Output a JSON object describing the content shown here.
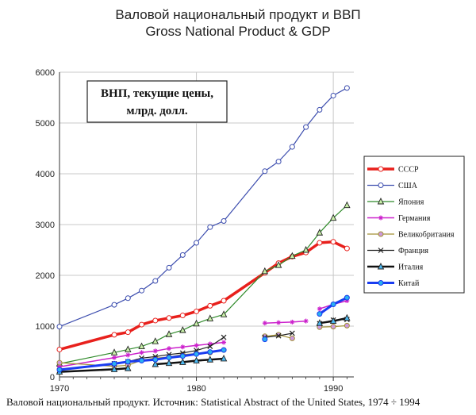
{
  "chart_data": {
    "type": "line",
    "title": "Валовой национальный продукт и ВВП",
    "subtitle": "Gross National Product & GDP",
    "annotation": [
      "ВНП, текущие цены,",
      "млрд. долл."
    ],
    "source": "Валовой национальный продукт. Источник: Statistical Abstract of the United States, 1974 ÷ 1994",
    "xlim": [
      1970,
      1991.5
    ],
    "ylim": [
      0,
      6000
    ],
    "x_ticks": [
      1970,
      1980,
      1990
    ],
    "y_ticks": [
      0,
      1000,
      2000,
      3000,
      4000,
      5000,
      6000
    ],
    "grid": true,
    "legend_position": "right",
    "series": [
      {
        "name": "СССР",
        "color": "#e8201c",
        "width": 3.5,
        "marker": "circle",
        "marker_fill": "#ffffff",
        "segments": [
          [
            [
              1970,
              540
            ],
            [
              1974,
              830
            ],
            [
              1975,
              880
            ],
            [
              1976,
              1030
            ],
            [
              1977,
              1110
            ],
            [
              1978,
              1160
            ],
            [
              1979,
              1210
            ],
            [
              1980,
              1290
            ],
            [
              1981,
              1400
            ],
            [
              1982,
              1500
            ],
            [
              1985,
              2050
            ],
            [
              1986,
              2240
            ],
            [
              1987,
              2370
            ],
            [
              1988,
              2450
            ],
            [
              1989,
              2640
            ],
            [
              1990,
              2660
            ],
            [
              1991,
              2530
            ]
          ]
        ]
      },
      {
        "name": "США",
        "color": "#3c4dae",
        "width": 1.2,
        "marker": "circle",
        "marker_fill": "#ffffff",
        "segments": [
          [
            [
              1970,
              990
            ],
            [
              1974,
              1420
            ],
            [
              1975,
              1550
            ],
            [
              1976,
              1700
            ],
            [
              1977,
              1890
            ],
            [
              1978,
              2150
            ],
            [
              1979,
              2400
            ],
            [
              1980,
              2640
            ],
            [
              1981,
              2950
            ],
            [
              1982,
              3070
            ],
            [
              1985,
              4050
            ],
            [
              1986,
              4240
            ],
            [
              1987,
              4530
            ],
            [
              1988,
              4920
            ],
            [
              1989,
              5260
            ],
            [
              1990,
              5540
            ],
            [
              1991,
              5690
            ]
          ]
        ]
      },
      {
        "name": "Япония",
        "color": "#2f8a2a",
        "width": 1.2,
        "marker": "triangle",
        "marker_fill": "#c8f0a8",
        "segments": [
          [
            [
              1970,
              260
            ],
            [
              1974,
              480
            ],
            [
              1975,
              540
            ],
            [
              1976,
              600
            ],
            [
              1977,
              700
            ],
            [
              1978,
              840
            ],
            [
              1979,
              920
            ],
            [
              1980,
              1050
            ],
            [
              1981,
              1150
            ],
            [
              1982,
              1230
            ],
            [
              1985,
              2080
            ],
            [
              1986,
              2200
            ],
            [
              1987,
              2380
            ],
            [
              1988,
              2500
            ],
            [
              1989,
              2840
            ],
            [
              1990,
              3130
            ],
            [
              1991,
              3380
            ]
          ]
        ]
      },
      {
        "name": "Германия",
        "color": "#cc22cc",
        "width": 1.5,
        "marker": "star",
        "marker_fill": "#cc22cc",
        "segments": [
          [
            [
              1970,
              200
            ],
            [
              1974,
              380
            ],
            [
              1975,
              430
            ],
            [
              1976,
              480
            ],
            [
              1977,
              510
            ],
            [
              1978,
              560
            ],
            [
              1979,
              590
            ],
            [
              1980,
              620
            ],
            [
              1981,
              650
            ],
            [
              1982,
              680
            ]
          ],
          [
            [
              1985,
              1060
            ],
            [
              1986,
              1070
            ],
            [
              1987,
              1080
            ],
            [
              1988,
              1100
            ]
          ],
          [
            [
              1989,
              1340
            ],
            [
              1990,
              1430
            ],
            [
              1991,
              1500
            ]
          ]
        ]
      },
      {
        "name": "Великобритания",
        "color": "#a29034",
        "width": 1.2,
        "marker": "circle",
        "marker_fill": "#cc99dd",
        "segments": [
          [
            [
              1970,
              280
            ],
            [
              1974,
              210
            ],
            [
              1975,
              230
            ],
            [
              1976,
              330
            ],
            [
              1977,
              370
            ],
            [
              1978,
              390
            ],
            [
              1979,
              440
            ],
            [
              1980,
              460
            ],
            [
              1981,
              480
            ],
            [
              1982,
              530
            ]
          ],
          [
            [
              1985,
              800
            ],
            [
              1986,
              830
            ],
            [
              1987,
              760
            ]
          ],
          [
            [
              1989,
              980
            ],
            [
              1990,
              990
            ],
            [
              1991,
              1010
            ]
          ]
        ]
      },
      {
        "name": "Франция",
        "color": "#222222",
        "width": 1.2,
        "marker": "x",
        "marker_fill": "none",
        "segments": [
          [
            [
              1970,
              130
            ],
            [
              1974,
              260
            ],
            [
              1975,
              300
            ],
            [
              1976,
              370
            ],
            [
              1977,
              400
            ],
            [
              1978,
              440
            ],
            [
              1979,
              470
            ],
            [
              1980,
              520
            ],
            [
              1981,
              600
            ],
            [
              1982,
              780
            ]
          ],
          [
            [
              1985,
              780
            ],
            [
              1986,
              810
            ],
            [
              1987,
              860
            ]
          ],
          [
            [
              1989,
              1050
            ],
            [
              1990,
              1120
            ],
            [
              1991,
              1130
            ]
          ]
        ]
      },
      {
        "name": "Италия",
        "color": "#111111",
        "width": 2.5,
        "marker": "triangle",
        "marker_fill": "#4db8f0",
        "segments": [
          [
            [
              1970,
              100
            ],
            [
              1974,
              150
            ],
            [
              1975,
              170
            ]
          ],
          [
            [
              1977,
              250
            ],
            [
              1978,
              270
            ],
            [
              1979,
              290
            ],
            [
              1980,
              320
            ],
            [
              1981,
              340
            ],
            [
              1982,
              360
            ]
          ],
          [
            [
              1989,
              1060
            ],
            [
              1990,
              1100
            ],
            [
              1991,
              1160
            ]
          ]
        ]
      },
      {
        "name": "Китай",
        "color": "#1a3cf0",
        "width": 3,
        "marker": "circle",
        "marker_fill": "#2ab0f0",
        "segments": [
          [
            [
              1970,
              140
            ],
            [
              1974,
              260
            ],
            [
              1975,
              300
            ],
            [
              1976,
              320
            ],
            [
              1977,
              340
            ],
            [
              1978,
              380
            ],
            [
              1979,
              410
            ],
            [
              1980,
              450
            ],
            [
              1981,
              490
            ],
            [
              1982,
              530
            ]
          ],
          [
            [
              1985,
              740
            ]
          ],
          [
            [
              1989,
              1240
            ],
            [
              1990,
              1430
            ],
            [
              1991,
              1560
            ]
          ]
        ]
      }
    ]
  }
}
